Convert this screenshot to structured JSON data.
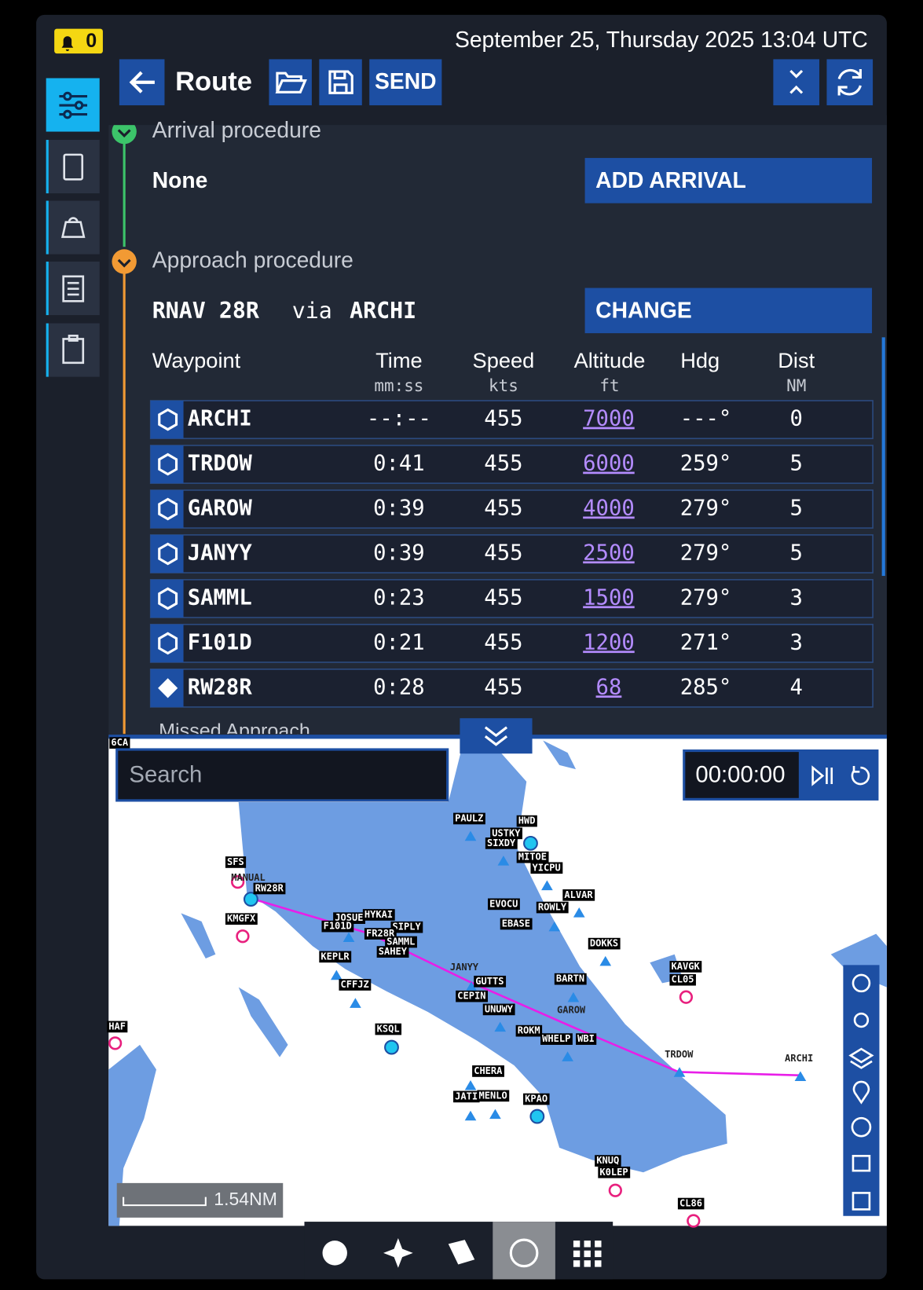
{
  "header": {
    "alert_count": 0,
    "datetime": "September 25, Thursday 2025 13:04 UTC",
    "title": "Route",
    "send": "SEND"
  },
  "arrival": {
    "heading": "Arrival procedure",
    "value": "None",
    "button": "ADD ARRIVAL"
  },
  "approach": {
    "heading": "Approach procedure",
    "name": "RNAV 28R",
    "via": "via",
    "fix": "ARCHI",
    "button": "CHANGE"
  },
  "table": {
    "columns": [
      {
        "name": "Waypoint"
      },
      {
        "name": "Time",
        "unit": "mm:ss"
      },
      {
        "name": "Speed",
        "unit": "kts"
      },
      {
        "name": "Altitude",
        "unit": "ft"
      },
      {
        "name": "Hdg"
      },
      {
        "name": "Dist",
        "unit": "NM"
      }
    ],
    "rows": [
      [
        "ARCHI",
        "--:--",
        455,
        7000,
        "---°",
        0
      ],
      [
        "TRDOW",
        "0:41",
        455,
        6000,
        "259°",
        5
      ],
      [
        "GAROW",
        "0:39",
        455,
        4000,
        "279°",
        5
      ],
      [
        "JANYY",
        "0:39",
        455,
        2500,
        "279°",
        5
      ],
      [
        "SAMML",
        "0:23",
        455,
        1500,
        "279°",
        3
      ],
      [
        "F101D",
        "0:21",
        455,
        1200,
        "271°",
        3
      ],
      [
        "RW28R",
        "0:28",
        455,
        68,
        "285°",
        4
      ]
    ]
  },
  "missed": "Missed Approach",
  "map": {
    "search": "Search",
    "timer": "00:00:00",
    "scale": "1.54NM",
    "labels": [
      "6CA",
      "PAULZ",
      "HWD",
      "USTKY",
      "SIXDY",
      "MITOE",
      "YICPU",
      "ALVAR",
      "ROWLY",
      "EVOCU",
      "EBASE",
      "DOKKS",
      "KAVGK",
      "CL05",
      "SFS",
      "MANUAL",
      "RW28R",
      "KMGFX",
      "JOSUE",
      "HYKAI",
      "F101D",
      "SIPLY",
      "FR28R",
      "SAMML",
      "SAHEY",
      "KEPLR",
      "CFFJZ",
      "JANYY",
      "GUTTS",
      "CEPIN",
      "UNUWY",
      "BARTN",
      "GAROW",
      "KSQL",
      "ROKM",
      "WHELP",
      "WBI",
      "TRDOW",
      "ARCHI",
      "CHERA",
      "JATI",
      "MENLO",
      "KPAO",
      "KNUQ",
      "K0LEP",
      "CL86",
      "HAF"
    ]
  }
}
